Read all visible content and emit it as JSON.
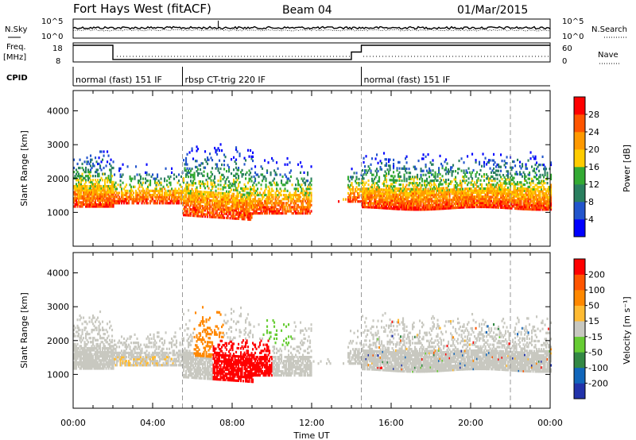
{
  "header": {
    "station": "Fort Hays West (fitACF)",
    "beam": "Beam 04",
    "date": "01/Mar/2015"
  },
  "strips": {
    "nsky_label": "N.Sky",
    "nsky_ticks": [
      "10^5",
      "10^0"
    ],
    "nsearch_label": "N.Search",
    "nsearch_ticks": [
      "10^5",
      "10^0"
    ],
    "freq_label": "Freq.",
    "freq_unit": "[MHz]",
    "freq_ticks": [
      "18",
      "8"
    ],
    "nave_label": "Nave",
    "nave_ticks": [
      "60",
      "0"
    ],
    "cpid_label": "CPID",
    "cpid_segments": [
      {
        "label": "normal (fast) 151 IF",
        "start_h": 0,
        "end_h": 5.5
      },
      {
        "label": "rbsp CT-trig 220 IF",
        "start_h": 5.5,
        "end_h": 14.5
      },
      {
        "label": "normal (fast) 151 IF",
        "start_h": 14.5,
        "end_h": 24
      }
    ],
    "freq_steps": [
      {
        "start_h": 0,
        "end_h": 2,
        "level": 0.95
      },
      {
        "start_h": 2,
        "end_h": 14,
        "level": 0.1
      },
      {
        "start_h": 14,
        "end_h": 14.5,
        "level": 0.55
      },
      {
        "start_h": 14.5,
        "end_h": 24,
        "level": 0.95
      }
    ]
  },
  "chart_data": [
    {
      "type": "heatmap",
      "name": "power",
      "ylabel": "Slant Range [km]",
      "yticks": [
        "4000",
        "3000",
        "2000",
        "1000"
      ],
      "ylim": [
        0,
        4600
      ],
      "xlim_hours": [
        0,
        24
      ],
      "colorbar_label": "Power [dB]",
      "colorbar_ticks": [
        "28",
        "24",
        "20",
        "16",
        "12",
        "8",
        "4"
      ],
      "colors": [
        "#0000ff",
        "#2255cc",
        "#2a7f5f",
        "#33aa33",
        "#ffcc00",
        "#ff9900",
        "#ff5500",
        "#ff0000"
      ],
      "dashed_lines_h": [
        5.5,
        14.5,
        22
      ]
    },
    {
      "type": "heatmap",
      "name": "velocity",
      "ylabel": "Slant Range [km]",
      "yticks": [
        "4000",
        "3000",
        "2000",
        "1000"
      ],
      "ylim": [
        0,
        4600
      ],
      "xlim_hours": [
        0,
        24
      ],
      "colorbar_label": "Velocity [m s⁻¹]",
      "colorbar_ticks": [
        "200",
        "100",
        "50",
        "15",
        "-15",
        "-50",
        "-100",
        "-200"
      ],
      "colors": [
        "#2233aa",
        "#1166bb",
        "#338844",
        "#66cc33",
        "#c8c8c0",
        "#ffbb33",
        "#ff8800",
        "#ff5500",
        "#ff0000"
      ],
      "dashed_lines_h": [
        5.5,
        14.5,
        22
      ]
    }
  ],
  "xaxis": {
    "ticks": [
      "00:00",
      "04:00",
      "08:00",
      "12:00",
      "16:00",
      "20:00",
      "00:00"
    ],
    "label": "Time UT"
  }
}
